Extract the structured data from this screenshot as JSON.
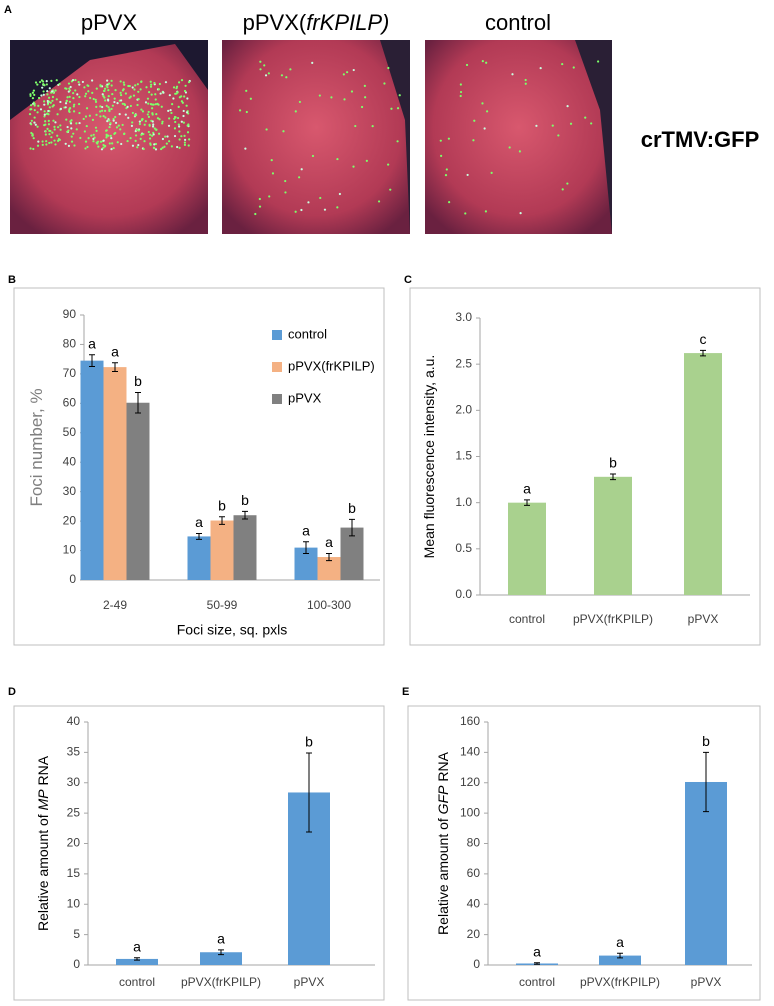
{
  "panel_a": {
    "label": "A",
    "titles": [
      [
        "pPVX"
      ],
      [
        "pPVX(",
        "frKPILP)"
      ],
      [
        "control"
      ]
    ],
    "titles_italic_part": 1,
    "caption": "crTMV:GFP"
  },
  "chart_data": [
    {
      "type": "bar",
      "label": "B",
      "categories": [
        "2-49",
        "50-99",
        "100-300"
      ],
      "series": [
        {
          "name": "control",
          "color": "#5b9bd5",
          "values": [
            74.5,
            14.8,
            11
          ],
          "errors": [
            2,
            1,
            2
          ],
          "annotations": [
            "a",
            "a",
            "a"
          ]
        },
        {
          "name": "pPVX(frKPILP)",
          "color": "#f4b183",
          "values": [
            72.3,
            20.2,
            7.8
          ],
          "errors": [
            1.5,
            1.3,
            1.2
          ],
          "annotations": [
            "a",
            "b",
            "a"
          ]
        },
        {
          "name": "pPVX",
          "color": "#808080",
          "values": [
            60.2,
            22,
            17.8
          ],
          "errors": [
            3.5,
            1.3,
            2.8
          ],
          "annotations": [
            "b",
            "b",
            "b"
          ]
        }
      ],
      "ylim": [
        0,
        90
      ],
      "yticks": [
        0,
        10,
        20,
        30,
        40,
        50,
        60,
        70,
        80,
        90
      ],
      "xlabel": "Foci size, sq. pxls",
      "ylabel": [
        "Foci number, %"
      ],
      "legend": "upper right"
    },
    {
      "type": "bar",
      "label": "C",
      "categories": [
        "control",
        "pPVX(frKPILP)",
        "pPVX"
      ],
      "color": "#a9d18e",
      "values": [
        1.0,
        1.28,
        2.62
      ],
      "errors": [
        0.03,
        0.03,
        0.03
      ],
      "annotations": [
        "a",
        "b",
        "c"
      ],
      "ylim": [
        0,
        3
      ],
      "yticks": [
        {
          "value": 0,
          "label": "0.0"
        },
        {
          "value": 0.5,
          "label": "0.5"
        },
        {
          "value": 1,
          "label": "1.0"
        },
        {
          "value": 1.5,
          "label": "1.5"
        },
        {
          "value": 2,
          "label": "2.0"
        },
        {
          "value": 2.5,
          "label": "2.5"
        },
        {
          "value": 3,
          "label": "3.0"
        }
      ],
      "ylabel": [
        "Mean fluorescence intensity, a.u."
      ]
    },
    {
      "type": "bar",
      "label": "D",
      "categories": [
        "control",
        "pPVX(frKPILP)",
        "pPVX"
      ],
      "color": "#5b9bd5",
      "values": [
        1.0,
        2.1,
        28.4
      ],
      "errors": [
        0.2,
        0.4,
        6.5
      ],
      "annotations": [
        "a",
        "a",
        "b"
      ],
      "ylim": [
        0,
        40
      ],
      "yticks": [
        0,
        5,
        10,
        15,
        20,
        25,
        30,
        35,
        40
      ],
      "ylabel": [
        "Relative amount of ",
        "MP",
        " RNA"
      ],
      "ylabel_italic_part": 1
    },
    {
      "type": "bar",
      "label": "E",
      "categories": [
        "control",
        "pPVX(frKPILP)",
        "pPVX"
      ],
      "color": "#5b9bd5",
      "values": [
        1.0,
        6.2,
        120.5
      ],
      "errors": [
        0.5,
        1.5,
        19.5
      ],
      "annotations": [
        "a",
        "a",
        "b"
      ],
      "ylim": [
        0,
        160
      ],
      "yticks": [
        0,
        20,
        40,
        60,
        80,
        100,
        120,
        140,
        160
      ],
      "ylabel": [
        "Relative amount of ",
        "GFP",
        " RNA"
      ],
      "ylabel_italic_part": 1
    }
  ]
}
